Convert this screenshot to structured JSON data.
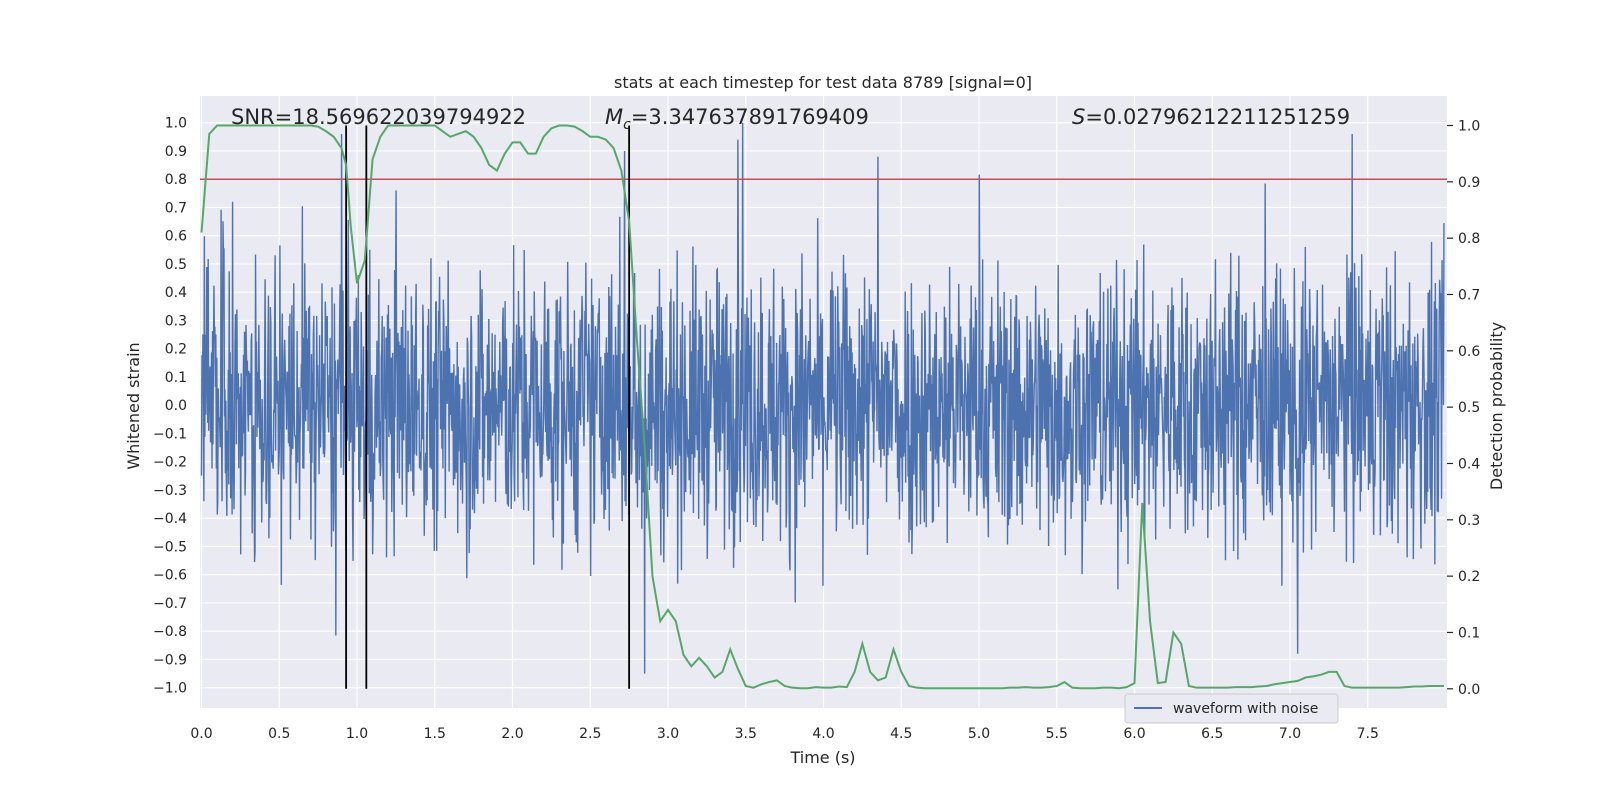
{
  "chart_data": {
    "type": "line",
    "title": "stats at each timestep for test data 8789 [signal=0]",
    "xlabel": "Time (s)",
    "ylabel_left": "Whitened strain",
    "ylabel_right": "Detection probability",
    "xlim": [
      0.0,
      8.0
    ],
    "ylim_left": [
      -1.05,
      1.05
    ],
    "ylim_right": [
      -0.045,
      1.045
    ],
    "x_ticks": [
      "0.0",
      "0.5",
      "1.0",
      "1.5",
      "2.0",
      "2.5",
      "3.0",
      "3.5",
      "4.0",
      "4.5",
      "5.0",
      "5.5",
      "6.0",
      "6.5",
      "7.0",
      "7.5"
    ],
    "y_left_ticks": [
      "1.0",
      "0.9",
      "0.8",
      "0.7",
      "0.6",
      "0.5",
      "0.4",
      "0.3",
      "0.2",
      "0.1",
      "0.0",
      "−0.1",
      "−0.2",
      "−0.3",
      "−0.4",
      "−0.5",
      "−0.6",
      "−0.7",
      "−0.8",
      "−0.9",
      "−1.0"
    ],
    "y_right_ticks": [
      "1.0",
      "0.9",
      "0.8",
      "0.7",
      "0.6",
      "0.5",
      "0.4",
      "0.3",
      "0.2",
      "0.1",
      "0.0"
    ],
    "grid": true,
    "legend": {
      "position": "bottom-right",
      "entries": [
        "waveform with noise"
      ]
    },
    "annotations": {
      "snr": "SNR=18.569622039794922",
      "mc_symbol": "M",
      "mc_subscript": "c",
      "mc_value": "=3.347637891769409",
      "s_symbol": "S",
      "s_value": "=0.02796212211251259"
    },
    "threshold": {
      "axis": "left",
      "value": 0.8,
      "color": "#c44e52"
    },
    "vertical_lines": [
      0.93,
      1.06,
      2.75
    ],
    "vertical_line_range_right": [
      0.0,
      1.0
    ],
    "series": [
      {
        "name": "waveform with noise",
        "axis": "left",
        "color": "#4c72b0",
        "kind": "noise",
        "approx_envelope": [
          -0.95,
          0.98
        ],
        "notable_peaks": [
          [
            0.9,
            0.96
          ],
          [
            2.72,
            0.9
          ],
          [
            3.45,
            0.94
          ],
          [
            3.48,
            1.0
          ],
          [
            4.35,
            0.88
          ],
          [
            7.4,
            0.96
          ],
          [
            2.85,
            -0.95
          ],
          [
            7.05,
            -0.88
          ]
        ]
      },
      {
        "axis": "right",
        "color": "#55a868",
        "x": [
          0.0,
          0.05,
          0.1,
          0.15,
          0.2,
          0.25,
          0.3,
          0.35,
          0.4,
          0.45,
          0.5,
          0.55,
          0.6,
          0.65,
          0.7,
          0.75,
          0.8,
          0.85,
          0.9,
          0.93,
          0.96,
          1.0,
          1.05,
          1.1,
          1.15,
          1.2,
          1.25,
          1.3,
          1.35,
          1.4,
          1.45,
          1.5,
          1.55,
          1.6,
          1.65,
          1.7,
          1.75,
          1.8,
          1.85,
          1.9,
          1.95,
          2.0,
          2.05,
          2.1,
          2.15,
          2.2,
          2.25,
          2.3,
          2.35,
          2.4,
          2.45,
          2.5,
          2.55,
          2.6,
          2.65,
          2.7,
          2.75,
          2.8,
          2.85,
          2.9,
          2.95,
          3.0,
          3.05,
          3.1,
          3.15,
          3.2,
          3.25,
          3.3,
          3.35,
          3.4,
          3.45,
          3.5,
          3.55,
          3.6,
          3.65,
          3.7,
          3.75,
          3.8,
          3.85,
          3.9,
          3.95,
          4.0,
          4.05,
          4.1,
          4.15,
          4.2,
          4.25,
          4.3,
          4.35,
          4.4,
          4.45,
          4.5,
          4.55,
          4.6,
          4.65,
          4.7,
          4.75,
          4.8,
          4.85,
          4.9,
          4.95,
          5.0,
          5.05,
          5.1,
          5.15,
          5.2,
          5.25,
          5.3,
          5.35,
          5.4,
          5.45,
          5.5,
          5.55,
          5.6,
          5.65,
          5.7,
          5.75,
          5.8,
          5.85,
          5.9,
          5.95,
          6.0,
          6.05,
          6.1,
          6.15,
          6.2,
          6.25,
          6.3,
          6.35,
          6.4,
          6.45,
          6.5,
          6.55,
          6.6,
          6.65,
          6.7,
          6.75,
          6.8,
          6.85,
          6.9,
          6.95,
          7.0,
          7.05,
          7.1,
          7.15,
          7.2,
          7.25,
          7.3,
          7.35,
          7.4,
          7.45,
          7.5,
          7.55,
          7.6,
          7.65,
          7.7,
          7.75,
          7.8,
          7.85,
          7.9,
          7.95,
          7.99
        ],
        "y": [
          0.81,
          0.985,
          1.0,
          1.0,
          1.0,
          1.0,
          1.0,
          1.0,
          1.0,
          1.0,
          1.0,
          1.0,
          1.0,
          1.0,
          1.0,
          0.998,
          0.99,
          0.98,
          0.96,
          0.93,
          0.82,
          0.72,
          0.76,
          0.94,
          0.98,
          1.0,
          1.0,
          1.0,
          1.0,
          1.0,
          1.0,
          1.0,
          0.99,
          0.98,
          0.985,
          0.99,
          0.98,
          0.96,
          0.93,
          0.92,
          0.95,
          0.97,
          0.97,
          0.95,
          0.95,
          0.98,
          0.995,
          1.0,
          1.0,
          0.998,
          0.99,
          0.98,
          0.98,
          0.975,
          0.96,
          0.92,
          0.83,
          0.62,
          0.43,
          0.2,
          0.12,
          0.14,
          0.12,
          0.06,
          0.04,
          0.055,
          0.04,
          0.02,
          0.03,
          0.07,
          0.035,
          0.005,
          0.002,
          0.008,
          0.012,
          0.015,
          0.005,
          0.002,
          0.001,
          0.001,
          0.003,
          0.002,
          0.002,
          0.004,
          0.003,
          0.03,
          0.08,
          0.03,
          0.015,
          0.02,
          0.07,
          0.03,
          0.005,
          0.002,
          0.001,
          0.001,
          0.001,
          0.001,
          0.001,
          0.001,
          0.001,
          0.001,
          0.001,
          0.001,
          0.001,
          0.002,
          0.002,
          0.003,
          0.002,
          0.002,
          0.003,
          0.005,
          0.012,
          0.002,
          0.001,
          0.001,
          0.001,
          0.002,
          0.002,
          0.001,
          0.003,
          0.01,
          0.33,
          0.12,
          0.01,
          0.012,
          0.1,
          0.08,
          0.005,
          0.002,
          0.002,
          0.002,
          0.002,
          0.002,
          0.003,
          0.003,
          0.003,
          0.004,
          0.005,
          0.008,
          0.01,
          0.012,
          0.014,
          0.02,
          0.022,
          0.025,
          0.03,
          0.03,
          0.005,
          0.002,
          0.002,
          0.002,
          0.002,
          0.002,
          0.002,
          0.002,
          0.003,
          0.004,
          0.004,
          0.005,
          0.005,
          0.005
        ]
      }
    ]
  }
}
